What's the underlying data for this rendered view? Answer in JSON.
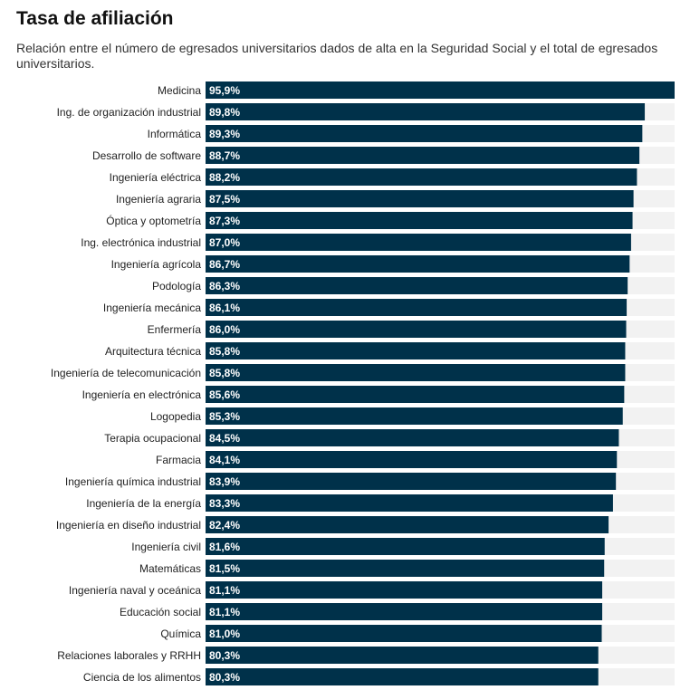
{
  "chart_data": {
    "type": "bar",
    "orientation": "horizontal",
    "title": "Tasa de afiliación",
    "subtitle": "Relación entre el número de egresados universitarios dados de alta en la Seguridad Social y el total de egresados universitarios.",
    "xlim": [
      0,
      95.9
    ],
    "bar_color": "#00314a",
    "track_color": "#f2f2f2",
    "categories": [
      "Medicina",
      "Ing. de organización industrial",
      "Informática",
      "Desarrollo de software",
      "Ingeniería eléctrica",
      "Ingeniería agraria",
      "Óptica y optometría",
      "Ing. electrónica industrial",
      "Ingeniería agrícola",
      "Podología",
      "Ingeniería mecánica",
      "Enfermería",
      "Arquitectura técnica",
      "Ingeniería de telecomunicación",
      "Ingeniería en electrónica",
      "Logopedia",
      "Terapia ocupacional",
      "Farmacia",
      "Ingeniería química industrial",
      "Ingeniería de la energía",
      "Ingeniería en diseño industrial",
      "Ingeniería civil",
      "Matemáticas",
      "Ingeniería naval y oceánica",
      "Educación social",
      "Química",
      "Relaciones laborales y RRHH",
      "Ciencia de los alimentos"
    ],
    "values": [
      95.9,
      89.8,
      89.3,
      88.7,
      88.2,
      87.5,
      87.3,
      87.0,
      86.7,
      86.3,
      86.1,
      86.0,
      85.8,
      85.8,
      85.6,
      85.3,
      84.5,
      84.1,
      83.9,
      83.3,
      82.4,
      81.6,
      81.5,
      81.1,
      81.1,
      81.0,
      80.3,
      80.3
    ],
    "value_labels": [
      "95,9%",
      "89,8%",
      "89,3%",
      "88,7%",
      "88,2%",
      "87,5%",
      "87,3%",
      "87,0%",
      "86,7%",
      "86,3%",
      "86,1%",
      "86,0%",
      "85,8%",
      "85,8%",
      "85,6%",
      "85,3%",
      "84,5%",
      "84,1%",
      "83,9%",
      "83,3%",
      "82,4%",
      "81,6%",
      "81,5%",
      "81,1%",
      "81,1%",
      "81,0%",
      "80,3%",
      "80,3%"
    ]
  }
}
